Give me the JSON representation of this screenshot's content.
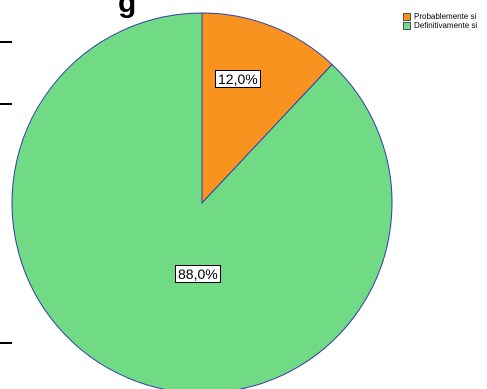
{
  "chart_data": {
    "type": "pie",
    "title_fragment": "g",
    "slices": [
      {
        "label": "Probablemente si",
        "value": 12.0,
        "value_label": "12,0%",
        "color": "#f7931e"
      },
      {
        "label": "Definitivamente si",
        "value": 88.0,
        "value_label": "88,0%",
        "color": "#70db84"
      }
    ],
    "start_angle": "12 o'clock, clockwise",
    "legend_position": "top-right",
    "edge_color": "#2f3fb0"
  }
}
